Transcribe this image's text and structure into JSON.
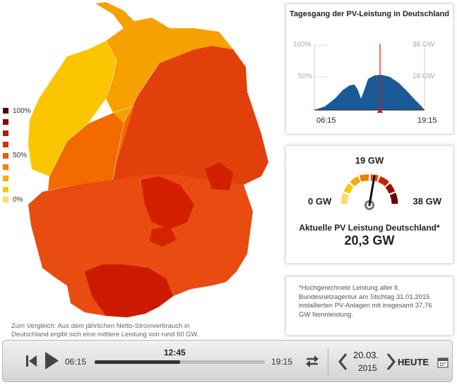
{
  "colors": {
    "scale": [
      "#5a0000",
      "#8a0a00",
      "#b31a00",
      "#d63000",
      "#ee5a00",
      "#f78400",
      "#fbaa00",
      "#fbc800",
      "#fcd96b"
    ],
    "curve": "#1a5a96",
    "marker": "#e01010"
  },
  "legend": {
    "top_label": "100%",
    "mid_label": "50%",
    "bottom_label": "0%"
  },
  "map_note": "Zum Vergleich: Aus dem jährlichen Netto-Stromverbrauch in Deutschland ergibt sich eine mittlere Leistung von rund 60 GW.",
  "daily_chart": {
    "title": "Tagesgang der PV-Leistung in Deutschland",
    "y_left": [
      "100%",
      "50%"
    ],
    "y_right": [
      "38 GW",
      "19 GW"
    ],
    "x_start": "06:15",
    "x_end": "19:15"
  },
  "gauge": {
    "top_label": "19 GW",
    "min_label": "0 GW",
    "max_label": "38 GW",
    "title": "Aktuelle PV Leistung Deutschland*",
    "value": "20,3 GW",
    "value_gw": 20.3
  },
  "footnote": "*Hochgerechnete Leistung aller lt. Bundesnetzagentur am Stichtag 31.01.2015 installierten PV-Anlagen mit insgesamt 37,76 GW Nennleistung.",
  "player": {
    "start": "06:15",
    "end": "19:15",
    "current": "12:45",
    "progress": 0.5,
    "date_line1": "20.03.",
    "date_line2": "2015",
    "today_label": "HEUTE"
  }
}
